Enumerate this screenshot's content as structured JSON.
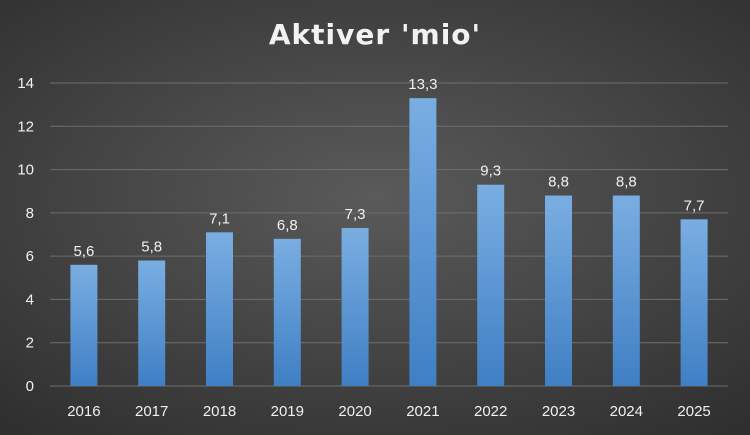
{
  "chart_data": {
    "type": "bar",
    "title": "Aktiver 'mio'",
    "xlabel": "",
    "ylabel": "",
    "categories": [
      "2016",
      "2017",
      "2018",
      "2019",
      "2020",
      "2021",
      "2022",
      "2023",
      "2024",
      "2025"
    ],
    "values": [
      5.6,
      5.8,
      7.1,
      6.8,
      7.3,
      13.3,
      9.3,
      8.8,
      8.8,
      7.7
    ],
    "value_labels": [
      "5,6",
      "5,8",
      "7,1",
      "6,8",
      "7,3",
      "13,3",
      "9,3",
      "8,8",
      "8,8",
      "7,7"
    ],
    "ylim": [
      0,
      14
    ],
    "yticks": [
      "0",
      "2",
      "4",
      "6",
      "8",
      "10",
      "12",
      "14"
    ],
    "grid": true,
    "legend": "none",
    "colors": {
      "bar_top": "#7aaee2",
      "bar_bottom": "#3f7fc4",
      "grid": "#6e6e6e",
      "text": "#f0f0f0"
    }
  }
}
